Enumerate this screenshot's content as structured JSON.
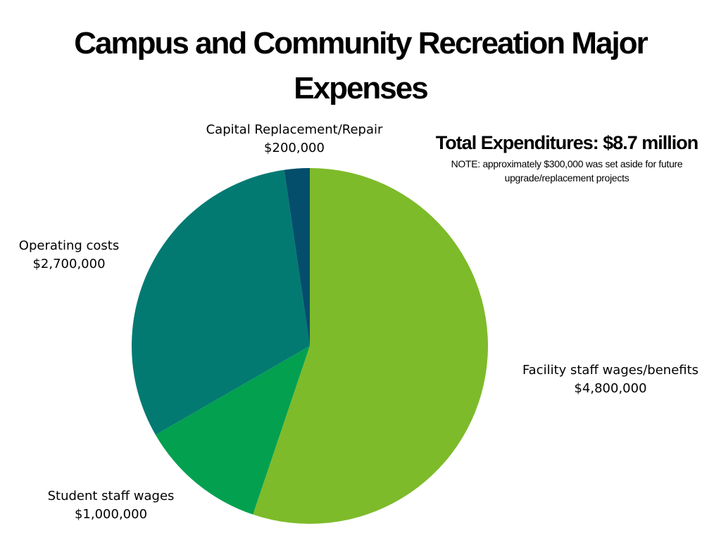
{
  "chart_data": {
    "type": "pie",
    "title": "Campus and Community Recreation Major Expenses",
    "slices": [
      {
        "label": "Facility staff wages/benefits",
        "value_text": "$4,800,000",
        "value": 4800000,
        "color": "#7dbb2a"
      },
      {
        "label": "Student staff wages",
        "value_text": "$1,000,000",
        "value": 1000000,
        "color": "#03a050"
      },
      {
        "label": "Operating costs",
        "value_text": "$2,700,000",
        "value": 2700000,
        "color": "#027a72"
      },
      {
        "label": "Capital Replacement/Repair",
        "value_text": "$200,000",
        "value": 200000,
        "color": "#044e6c"
      }
    ],
    "start": "12 o'clock",
    "direction": "clockwise",
    "legend": "none"
  },
  "summary": {
    "total": "Total Expenditures: $8.7 million",
    "note": "NOTE: approximately $300,000 was set aside for future upgrade/replacement projects"
  }
}
